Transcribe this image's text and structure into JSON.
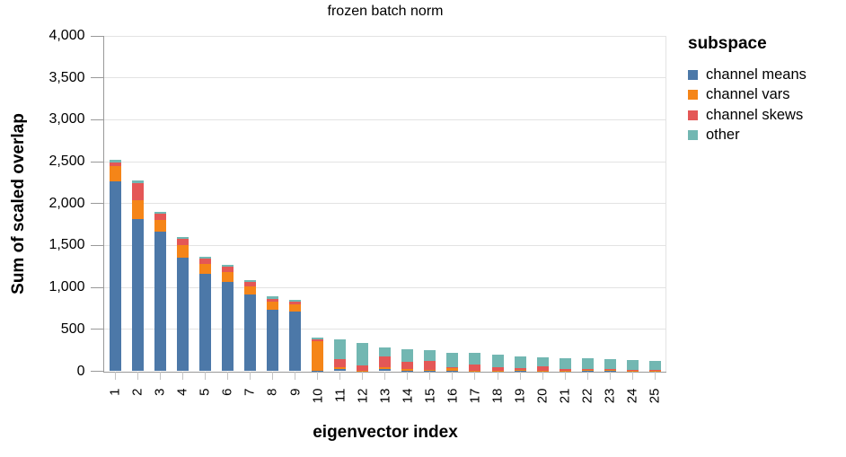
{
  "legend": {
    "title": "subspace"
  },
  "chart_data": {
    "type": "bar",
    "stacked": true,
    "title": "frozen batch norm",
    "xlabel": "eigenvector index",
    "ylabel": "Sum of scaled overlap",
    "ylim": [
      0,
      4000
    ],
    "grid": true,
    "legend_position": "right",
    "ytick_values": [
      0,
      500,
      1000,
      1500,
      2000,
      2500,
      3000,
      3500,
      4000
    ],
    "ytick_labels": [
      "0",
      "500",
      "1,000",
      "1,500",
      "2,000",
      "2,500",
      "3,000",
      "3,500",
      "4,000"
    ],
    "categories": [
      "1",
      "2",
      "3",
      "4",
      "5",
      "6",
      "7",
      "8",
      "9",
      "10",
      "11",
      "12",
      "13",
      "14",
      "15",
      "16",
      "17",
      "18",
      "19",
      "20",
      "21",
      "22",
      "23",
      "24",
      "25"
    ],
    "series": [
      {
        "name": "channel means",
        "color": "#4c78a8",
        "values": [
          2270,
          1820,
          1660,
          1350,
          1165,
          1065,
          920,
          735,
          710,
          5,
          25,
          5,
          25,
          5,
          8,
          5,
          5,
          3,
          3,
          3,
          3,
          3,
          3,
          2,
          2
        ]
      },
      {
        "name": "channel vars",
        "color": "#f58518",
        "values": [
          175,
          225,
          145,
          155,
          110,
          118,
          97,
          96,
          89,
          355,
          20,
          5,
          20,
          18,
          5,
          28,
          5,
          5,
          10,
          3,
          3,
          8,
          10,
          3,
          3
        ]
      },
      {
        "name": "channel skews",
        "color": "#e45756",
        "values": [
          50,
          200,
          75,
          75,
          68,
          64,
          50,
          33,
          29,
          18,
          100,
          55,
          135,
          85,
          112,
          15,
          68,
          35,
          20,
          55,
          25,
          12,
          10,
          10,
          12
        ]
      },
      {
        "name": "other",
        "color": "#72b7b2",
        "values": [
          25,
          28,
          25,
          25,
          25,
          25,
          25,
          25,
          25,
          25,
          235,
          270,
          108,
          150,
          125,
          172,
          137,
          150,
          139,
          106,
          126,
          127,
          120,
          114,
          107
        ]
      }
    ]
  }
}
